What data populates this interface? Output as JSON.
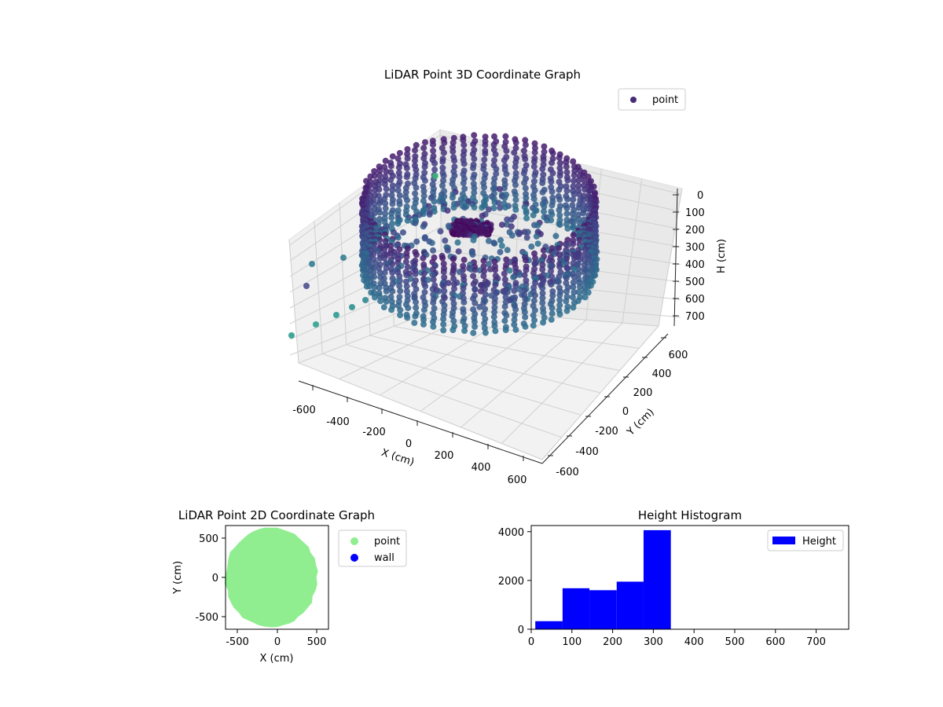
{
  "chart_data": [
    {
      "type": "scatter",
      "projection": "3d",
      "title": "LiDAR Point 3D Coordinate Graph",
      "xlabel": "X (cm)",
      "ylabel": "Y (cm)",
      "zlabel": "H (cm)",
      "xticks": [
        -600,
        -400,
        -200,
        0,
        200,
        400,
        600
      ],
      "yticks": [
        -600,
        -400,
        -200,
        0,
        200,
        400,
        600
      ],
      "zticks": [
        0,
        100,
        200,
        300,
        400,
        500,
        600,
        700
      ],
      "xlim": [
        -650,
        650
      ],
      "ylim": [
        -650,
        650
      ],
      "zlim": [
        750,
        0
      ],
      "z_axis_inverted": true,
      "colormap": "viridis",
      "legend": {
        "position": "top-right",
        "entries": [
          {
            "label": "point",
            "color": "#472c7a"
          }
        ]
      },
      "grid": true,
      "description_of_data": "dense ring-shaped (roughly circular, radius ~550-600 cm) scanned point cloud; points range in height ~0-340 cm, plus a few sparse outliers along the left edge"
    },
    {
      "type": "scatter",
      "title": "LiDAR Point 2D Coordinate Graph",
      "xlabel": "X (cm)",
      "ylabel": "Y (cm)",
      "xticks": [
        -500,
        0,
        500
      ],
      "yticks": [
        500,
        0,
        -500
      ],
      "xlim": [
        -650,
        650
      ],
      "ylim": [
        -650,
        650
      ],
      "series": [
        {
          "name": "point",
          "color": "#90ee90"
        },
        {
          "name": "wall",
          "color": "#0000ff"
        }
      ],
      "legend": {
        "position": "outside-right"
      },
      "grid": false
    },
    {
      "type": "bar",
      "subtype": "histogram",
      "title": "Height Histogram",
      "xticks": [
        0,
        100,
        200,
        300,
        400,
        500,
        600,
        700
      ],
      "yticks": [
        0,
        2000,
        4000
      ],
      "xlim": [
        0,
        780
      ],
      "ylim": [
        0,
        4250
      ],
      "bins": [
        {
          "start": 10,
          "end": 77,
          "count": 330
        },
        {
          "start": 77,
          "end": 143,
          "count": 1680
        },
        {
          "start": 143,
          "end": 210,
          "count": 1600
        },
        {
          "start": 210,
          "end": 276,
          "count": 1950
        },
        {
          "start": 276,
          "end": 343,
          "count": 4060
        }
      ],
      "series": [
        {
          "name": "Height",
          "color": "#0000ff"
        }
      ],
      "legend": {
        "position": "top-right"
      },
      "grid": false
    }
  ]
}
